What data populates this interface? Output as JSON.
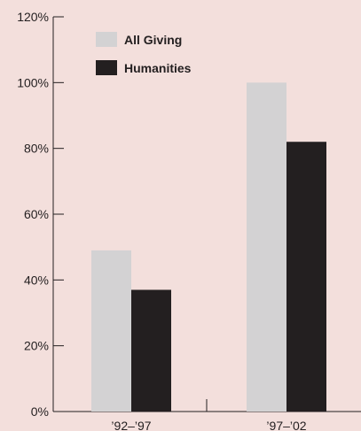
{
  "chart_data": {
    "type": "bar",
    "title": "",
    "xlabel": "",
    "ylabel": "",
    "categories": [
      "’92–’97",
      "’97–’02"
    ],
    "series": [
      {
        "name": "All Giving",
        "values": [
          49,
          100
        ],
        "color": "#d3d2d3"
      },
      {
        "name": "Humanities",
        "values": [
          37,
          82
        ],
        "color": "#231f20"
      }
    ],
    "ylim": [
      0,
      120
    ],
    "yticks": [
      0,
      20,
      40,
      60,
      80,
      100,
      120
    ],
    "ytick_labels": [
      "0%",
      "20%",
      "40%",
      "60%",
      "80%",
      "100%",
      "120%"
    ],
    "grid": false,
    "legend_position": "top-left",
    "background": "#f3dfdc",
    "axis_color": "#231f20"
  }
}
